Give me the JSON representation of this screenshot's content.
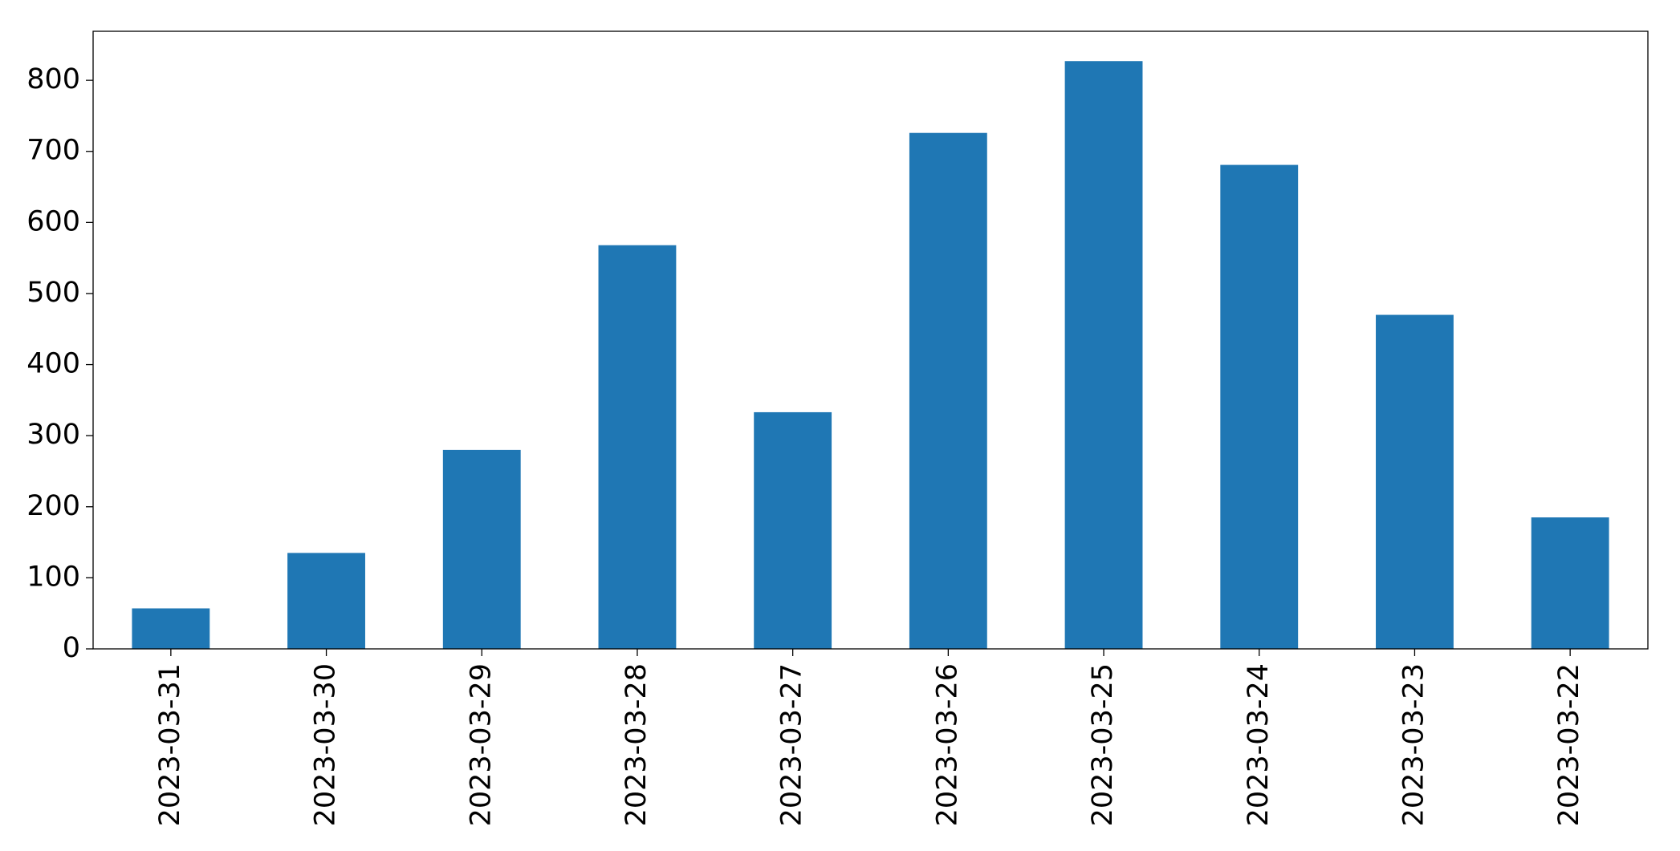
{
  "chart_data": {
    "type": "bar",
    "categories": [
      "2023-03-31",
      "2023-03-30",
      "2023-03-29",
      "2023-03-28",
      "2023-03-27",
      "2023-03-26",
      "2023-03-25",
      "2023-03-24",
      "2023-03-23",
      "2023-03-22"
    ],
    "values": [
      57,
      135,
      280,
      568,
      333,
      726,
      827,
      681,
      470,
      185
    ],
    "color": "#1f77b4",
    "ylim": [
      0,
      869
    ],
    "yticks": [
      0,
      100,
      200,
      300,
      400,
      500,
      600,
      700,
      800
    ]
  }
}
